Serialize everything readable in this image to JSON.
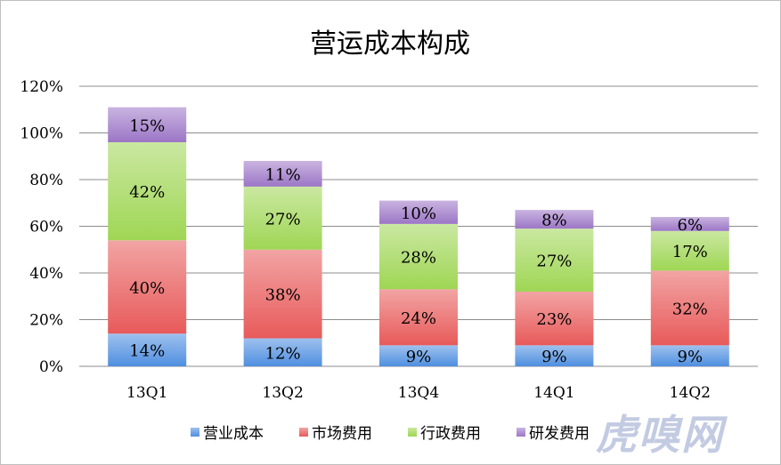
{
  "chart_data": {
    "type": "bar",
    "stacked": true,
    "title": "营运成本构成",
    "categories": [
      "13Q1",
      "13Q2",
      "13Q4",
      "14Q1",
      "14Q2"
    ],
    "yticks": [
      "0%",
      "20%",
      "40%",
      "60%",
      "80%",
      "100%",
      "120%"
    ],
    "ylim": [
      0,
      120
    ],
    "grid": true,
    "legend_position": "bottom",
    "series": [
      {
        "name": "营业成本",
        "values": [
          14,
          12,
          9,
          9,
          9
        ],
        "labels": [
          "14%",
          "12%",
          "9%",
          "9%",
          "9%"
        ],
        "color": "#4f8fe0"
      },
      {
        "name": "市场费用",
        "values": [
          40,
          38,
          24,
          23,
          32
        ],
        "labels": [
          "40%",
          "38%",
          "24%",
          "23%",
          "32%"
        ],
        "color": "#e85a5a"
      },
      {
        "name": "行政费用",
        "values": [
          42,
          27,
          28,
          27,
          17
        ],
        "labels": [
          "42%",
          "27%",
          "28%",
          "27%",
          "17%"
        ],
        "color": "#9fd654"
      },
      {
        "name": "研发费用",
        "values": [
          15,
          11,
          10,
          8,
          6
        ],
        "labels": [
          "15%",
          "11%",
          "10%",
          "8%",
          "6%"
        ],
        "color": "#9c76c6"
      }
    ]
  },
  "watermark": "虎嗅网"
}
